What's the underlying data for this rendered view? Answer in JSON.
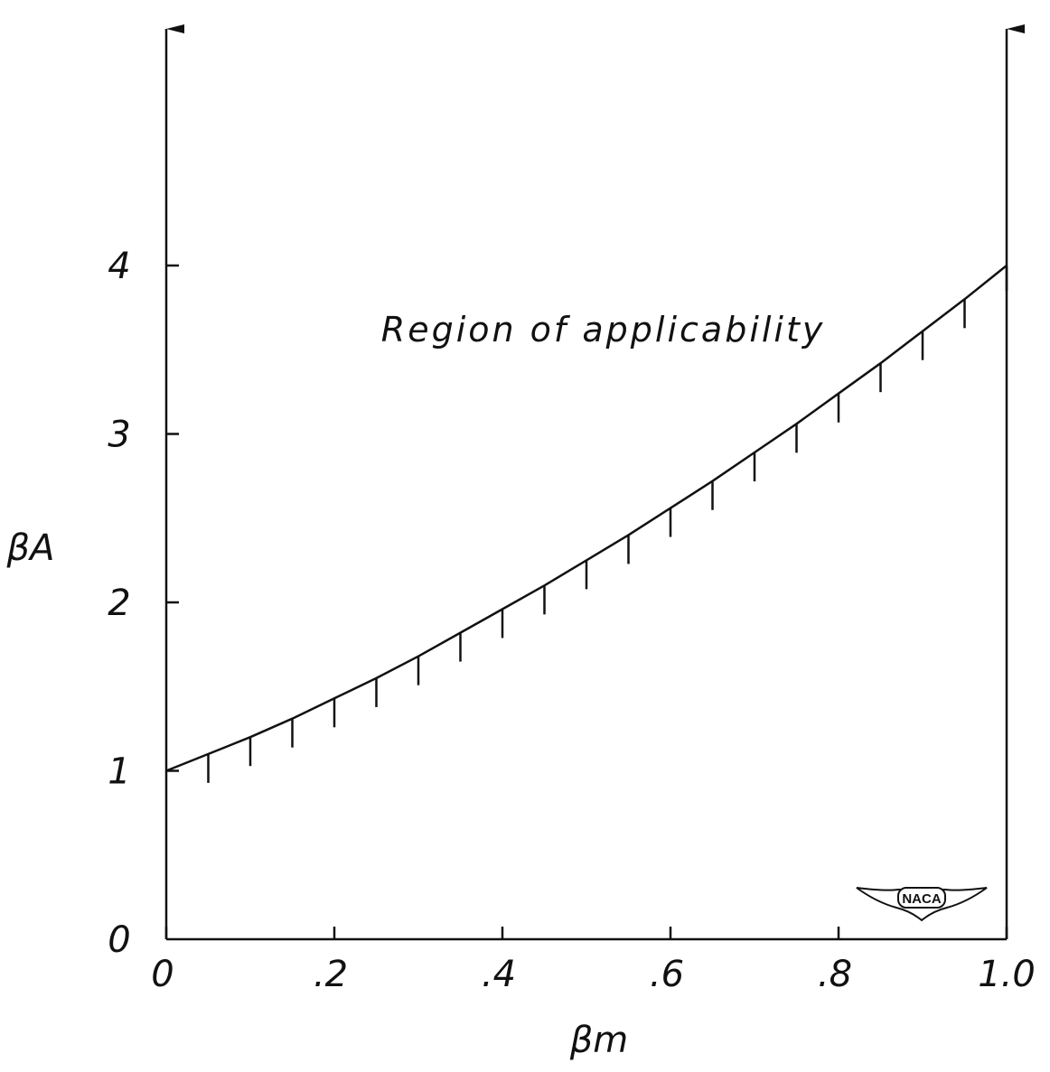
{
  "chart_data": {
    "type": "line",
    "title": "",
    "xlabel": "βm",
    "ylabel": "βA",
    "xlim": [
      0,
      1.0
    ],
    "ylim": [
      0,
      4
    ],
    "x_ticks": [
      {
        "value": 0,
        "label": "0"
      },
      {
        "value": 0.2,
        "label": ".2"
      },
      {
        "value": 0.4,
        "label": ".4"
      },
      {
        "value": 0.6,
        "label": ".6"
      },
      {
        "value": 0.8,
        "label": ".8"
      },
      {
        "value": 1.0,
        "label": "1.0"
      }
    ],
    "y_ticks": [
      {
        "value": 0,
        "label": "0"
      },
      {
        "value": 1,
        "label": "1"
      },
      {
        "value": 2,
        "label": "2"
      },
      {
        "value": 3,
        "label": "3"
      },
      {
        "value": 4,
        "label": "4"
      }
    ],
    "series": [
      {
        "x": [
          0,
          0.05,
          0.1,
          0.15,
          0.2,
          0.25,
          0.3,
          0.35,
          0.4,
          0.45,
          0.5,
          0.55,
          0.6,
          0.65,
          0.7,
          0.75,
          0.8,
          0.85,
          0.9,
          0.95,
          1.0
        ],
        "y": [
          1.0,
          1.1,
          1.2,
          1.31,
          1.43,
          1.55,
          1.68,
          1.82,
          1.96,
          2.1,
          2.25,
          2.4,
          2.56,
          2.72,
          2.89,
          3.06,
          3.24,
          3.42,
          3.61,
          3.8,
          4.0
        ]
      }
    ],
    "boundary_verticals": [
      0,
      1.0
    ],
    "grid": false,
    "annotations": [
      {
        "text": "Region of applicability",
        "x": 0.52,
        "y": 3.55
      }
    ],
    "logo": {
      "text": "NACA"
    }
  }
}
